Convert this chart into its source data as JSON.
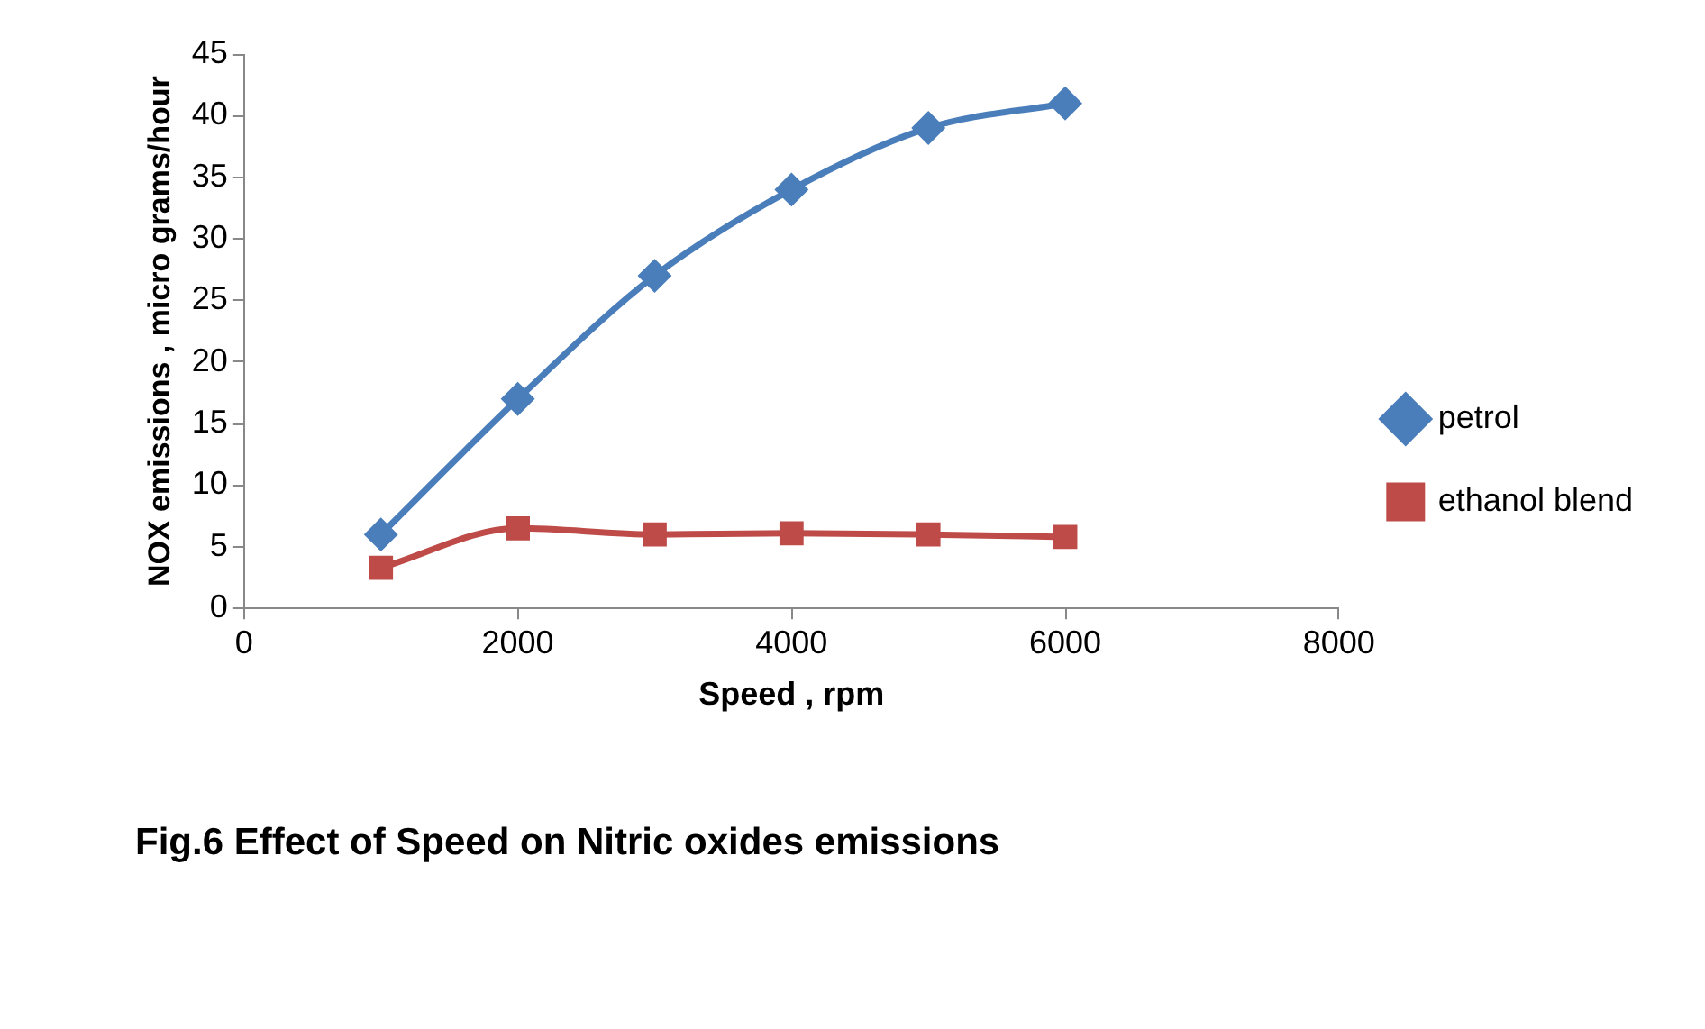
{
  "chart_data": {
    "type": "line",
    "title": "Fig.6 Effect of Speed on Nitric oxides emissions",
    "xlabel": "Speed , rpm",
    "ylabel": "NOX emissions , micro grams/hour",
    "x": [
      1000,
      2000,
      3000,
      4000,
      5000,
      6000
    ],
    "series": [
      {
        "name": "petrol",
        "color": "#4a7ebb",
        "marker": "diamond",
        "values": [
          6,
          17,
          27,
          34,
          39,
          41
        ]
      },
      {
        "name": "ethanol blend",
        "color": "#be4b48",
        "marker": "square",
        "values": [
          3.3,
          6.5,
          6,
          6.1,
          6,
          5.8
        ]
      }
    ],
    "xlim": [
      0,
      8000
    ],
    "xticks": [
      0,
      2000,
      4000,
      6000,
      8000
    ],
    "ylim": [
      0,
      45
    ],
    "yticks": [
      0,
      5,
      10,
      15,
      20,
      25,
      30,
      35,
      40,
      45
    ],
    "grid": false,
    "legend": "right",
    "line_style": "solid"
  }
}
